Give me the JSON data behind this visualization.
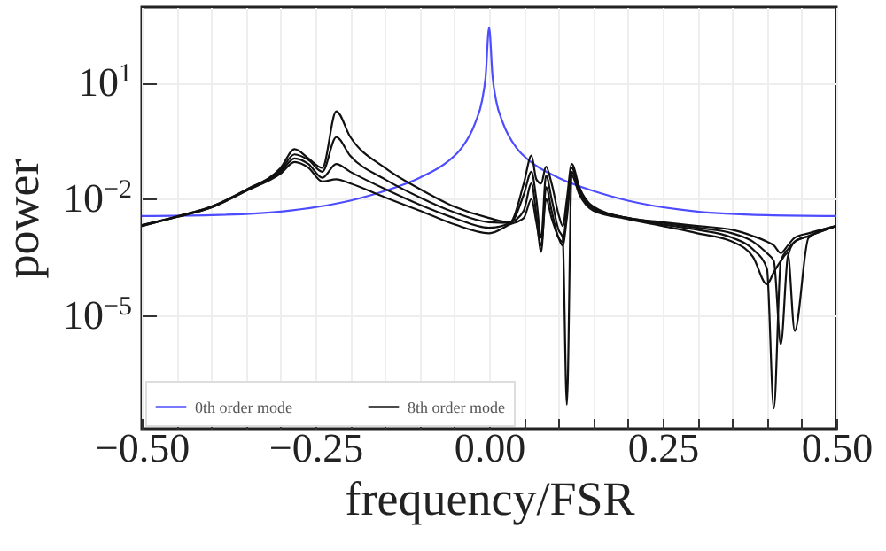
{
  "chart_data": {
    "type": "line",
    "xlabel": "frequency/FSR",
    "ylabel": "power",
    "log": "y",
    "grid": true,
    "legend": "bottom left",
    "xlim": [
      -0.5,
      0.5
    ],
    "xticks": [
      {
        "value": -0.5,
        "label": "−0.50"
      },
      {
        "value": -0.45,
        "label": null
      },
      {
        "value": -0.4,
        "label": null
      },
      {
        "value": -0.35,
        "label": null
      },
      {
        "value": -0.3,
        "label": null
      },
      {
        "value": -0.25,
        "label": "−0.25"
      },
      {
        "value": -0.2,
        "label": null
      },
      {
        "value": -0.15,
        "label": null
      },
      {
        "value": -0.1,
        "label": null
      },
      {
        "value": -0.05,
        "label": null
      },
      {
        "value": 0,
        "label": "0.00"
      },
      {
        "value": 0.05,
        "label": null
      },
      {
        "value": 0.1,
        "label": null
      },
      {
        "value": 0.15,
        "label": null
      },
      {
        "value": 0.2,
        "label": null
      },
      {
        "value": 0.25,
        "label": "0.25"
      },
      {
        "value": 0.3,
        "label": null
      },
      {
        "value": 0.35,
        "label": null
      },
      {
        "value": 0.4,
        "label": null
      },
      {
        "value": 0.45,
        "label": null
      },
      {
        "value": 0.5,
        "label": "0.50"
      }
    ],
    "ylim": [
      1.2e-08,
      870
    ],
    "yticks": [
      {
        "value": 10,
        "label": "10$^{1}$"
      },
      {
        "value": 0.01,
        "label": "10$^{−2}$"
      },
      {
        "value": 1e-05,
        "label": "10$^{−5}$"
      }
    ],
    "series": [
      {
        "name": "0th order mode",
        "color": "#4d4dff",
        "x": [
          -0.5,
          -0.4,
          -0.3,
          -0.2,
          -0.15,
          -0.1,
          -0.06,
          -0.04,
          -0.02,
          -0.01,
          -0.005,
          0,
          0.005,
          0.01,
          0.02,
          0.04,
          0.06,
          0.1,
          0.15,
          0.2,
          0.3,
          0.4,
          0.5
        ],
        "values": [
          0.0036,
          0.0038,
          0.0047,
          0.009,
          0.016,
          0.035,
          0.09,
          0.2,
          0.9,
          3.5,
          14,
          260,
          14,
          3.5,
          0.9,
          0.2,
          0.09,
          0.035,
          0.016,
          0.009,
          0.0047,
          0.0038,
          0.0036
        ]
      },
      {
        "name": "8th order mode",
        "color": "#111111",
        "x": [
          -0.5,
          -0.45,
          -0.4,
          -0.35,
          -0.3,
          -0.28,
          -0.26,
          -0.24,
          -0.22,
          -0.2,
          -0.15,
          -0.1,
          -0.05,
          0,
          0.03,
          0.05,
          0.061,
          0.068,
          0.075,
          0.082,
          0.09,
          0.1,
          0.106,
          0.112,
          0.119,
          0.13,
          0.15,
          0.2,
          0.25,
          0.3,
          0.35,
          0.38,
          0.4,
          0.41,
          0.42,
          0.43,
          0.44,
          0.46,
          0.5
        ],
        "values": [
          0.0021,
          0.0035,
          0.0063,
          0.017,
          0.063,
          0.19,
          0.11,
          0.063,
          1.8,
          0.4,
          0.063,
          0.018,
          0.0063,
          0.0032,
          0.0025,
          0.025,
          0.13,
          0.032,
          0.025,
          0.068,
          0.025,
          0.004,
          0.002,
          0.01,
          0.079,
          0.02,
          0.0063,
          0.0032,
          0.0025,
          0.002,
          0.0016,
          0.0011,
          0.00079,
          0.00063,
          0.0004,
          0.00063,
          0.001,
          0.0013,
          0.002
        ]
      },
      {
        "color": "#111111",
        "x": [
          -0.5,
          -0.45,
          -0.4,
          -0.35,
          -0.3,
          -0.28,
          -0.26,
          -0.24,
          -0.22,
          -0.2,
          -0.15,
          -0.1,
          -0.05,
          0,
          0.03,
          0.05,
          0.061,
          0.068,
          0.075,
          0.082,
          0.09,
          0.1,
          0.106,
          0.112,
          0.119,
          0.13,
          0.15,
          0.2,
          0.25,
          0.3,
          0.35,
          0.38,
          0.4,
          0.41,
          0.42,
          0.43,
          0.44,
          0.46,
          0.5
        ],
        "values": [
          0.0021,
          0.0035,
          0.0063,
          0.017,
          0.056,
          0.14,
          0.1,
          0.05,
          0.39,
          0.13,
          0.032,
          0.011,
          0.0045,
          0.0025,
          0.0024,
          0.013,
          0.05,
          0.01,
          0.001,
          0.04,
          0.01,
          0.0016,
          0.001,
          5e-08,
          0.05,
          0.016,
          0.0056,
          0.0032,
          0.0024,
          0.0018,
          0.0013,
          0.00079,
          0.0004,
          0.00025,
          1.8e-06,
          0.00032,
          0.00079,
          0.0011,
          0.002
        ]
      },
      {
        "color": "#111111",
        "x": [
          -0.5,
          -0.45,
          -0.4,
          -0.35,
          -0.3,
          -0.28,
          -0.26,
          -0.24,
          -0.22,
          -0.2,
          -0.15,
          -0.1,
          -0.05,
          0,
          0.03,
          0.05,
          0.061,
          0.068,
          0.075,
          0.082,
          0.09,
          0.1,
          0.106,
          0.112,
          0.119,
          0.13,
          0.15,
          0.2,
          0.25,
          0.3,
          0.35,
          0.38,
          0.4,
          0.41,
          0.42,
          0.43,
          0.44,
          0.46,
          0.5
        ],
        "values": [
          0.002,
          0.0034,
          0.006,
          0.016,
          0.05,
          0.11,
          0.079,
          0.035,
          0.079,
          0.05,
          0.018,
          0.0071,
          0.0032,
          0.0018,
          0.0024,
          0.005,
          0.025,
          0.004,
          0.00043,
          0.02,
          0.005,
          0.001,
          0.00079,
          0.005,
          0.063,
          0.016,
          0.0056,
          0.0032,
          0.0022,
          0.0016,
          0.001,
          0.0005,
          0.00016,
          4e-08,
          0.00025,
          0.0005,
          0.00079,
          0.0011,
          0.002
        ]
      },
      {
        "color": "#111111",
        "x": [
          -0.5,
          -0.45,
          -0.4,
          -0.35,
          -0.3,
          -0.28,
          -0.26,
          -0.24,
          -0.22,
          -0.2,
          -0.15,
          -0.1,
          -0.05,
          0,
          0.03,
          0.05,
          0.061,
          0.068,
          0.075,
          0.082,
          0.09,
          0.1,
          0.106,
          0.112,
          0.119,
          0.13,
          0.15,
          0.2,
          0.25,
          0.3,
          0.35,
          0.38,
          0.4,
          0.41,
          0.42,
          0.43,
          0.44,
          0.46,
          0.5
        ],
        "values": [
          0.002,
          0.0034,
          0.006,
          0.016,
          0.045,
          0.089,
          0.063,
          0.028,
          0.032,
          0.025,
          0.011,
          0.005,
          0.0022,
          0.0013,
          0.0022,
          0.0032,
          0.01,
          0.0025,
          0.00063,
          0.01,
          0.0032,
          0.001,
          0.00063,
          0.0032,
          0.04,
          0.013,
          0.005,
          0.003,
          0.002,
          0.0013,
          0.00079,
          0.00032,
          6.3e-05,
          0.00013,
          0.00025,
          0.0004,
          4e-06,
          0.001,
          0.002
        ]
      }
    ]
  }
}
